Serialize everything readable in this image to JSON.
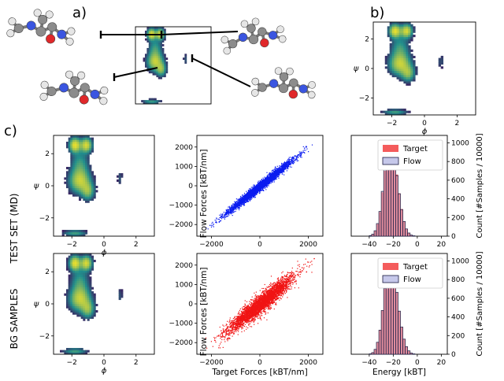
{
  "figure": {
    "panel_labels": {
      "a": "a)",
      "b": "b)",
      "c": "c)"
    },
    "row_labels": {
      "top": "TEST SET (MD)",
      "bottom": "BG SAMPLES"
    }
  },
  "colors": {
    "scatter_md": "#0a1cf0",
    "scatter_bg": "#f01414",
    "hist_target": "#f45c5c",
    "hist_flow_fill": "#c6c8ea",
    "hist_flow_edge": "#1a1a40",
    "density_low": "#440154",
    "density_mid": "#21908d",
    "density_high": "#fde725",
    "atom_carbon": "#8c8c8c",
    "atom_hydrogen": "#e6e6e6",
    "atom_nitrogen": "#3a55e0",
    "atom_oxygen": "#e0282a"
  },
  "chart_data": [
    {
      "id": "panel-a-ramachandran",
      "type": "heatmap",
      "title": "",
      "xlabel": "",
      "ylabel": "",
      "xlim": [
        -3.14,
        3.14
      ],
      "ylim": [
        -3.14,
        3.14
      ],
      "clusters": [
        {
          "phi": -1.5,
          "psi": 2.6,
          "weight": 1.0
        },
        {
          "phi": -1.3,
          "psi": 0.2,
          "weight": 0.8
        },
        {
          "phi": 1.0,
          "psi": 0.5,
          "weight": 0.15
        },
        {
          "phi": -1.6,
          "psi": -2.9,
          "weight": 0.3
        }
      ],
      "annotation": "four alanine-dipeptide conformations linked to density regions"
    },
    {
      "id": "panel-b-ramachandran",
      "type": "heatmap",
      "xlabel": "ϕ",
      "ylabel": "ψ",
      "xlim": [
        -3.14,
        3.14
      ],
      "ylim": [
        -3.14,
        3.14
      ],
      "xticks": [
        -2,
        0,
        2
      ],
      "yticks": [
        -2,
        0,
        2
      ],
      "clusters": [
        {
          "phi": -1.5,
          "psi": 2.6,
          "weight": 1.0
        },
        {
          "phi": -1.3,
          "psi": 0.2,
          "weight": 0.8
        },
        {
          "phi": 1.0,
          "psi": 0.5,
          "weight": 0.15
        },
        {
          "phi": -1.6,
          "psi": -2.9,
          "weight": 0.3
        }
      ]
    },
    {
      "id": "md-ramachandran",
      "type": "heatmap",
      "xlabel": "ϕ",
      "ylabel": "ψ",
      "xlim": [
        -3.14,
        3.14
      ],
      "ylim": [
        -3.14,
        3.14
      ],
      "xticks": [
        -2,
        0,
        2
      ],
      "yticks": [
        -2,
        0,
        2
      ],
      "clusters": [
        {
          "phi": -1.5,
          "psi": 2.6,
          "weight": 1.0
        },
        {
          "phi": -1.3,
          "psi": 0.2,
          "weight": 0.8
        },
        {
          "phi": 1.0,
          "psi": 0.5,
          "weight": 0.15
        },
        {
          "phi": -1.6,
          "psi": -2.9,
          "weight": 0.3
        }
      ]
    },
    {
      "id": "md-forces",
      "type": "scatter",
      "xlabel": "",
      "ylabel": "Flow Forces [k_B T/nm]",
      "xlim": [
        -2600,
        2600
      ],
      "ylim": [
        -2600,
        2600
      ],
      "xticks": [
        -2000,
        0,
        2000
      ],
      "yticks": [
        -2000,
        -1000,
        0,
        1000,
        2000
      ],
      "series": [
        {
          "name": "MD",
          "slope": 1.0,
          "spread": 120,
          "x_range": [
            -2300,
            2300
          ]
        }
      ]
    },
    {
      "id": "md-energy",
      "type": "bar",
      "xlabel": "",
      "ylabel": "Count   [#Samples / 10000]",
      "xlim": [
        -55,
        25
      ],
      "ylim": [
        0,
        1080
      ],
      "xticks": [
        -40,
        -20,
        0,
        20
      ],
      "yticks": [
        0,
        200,
        400,
        600,
        800,
        1000
      ],
      "bins": [
        -39,
        -37,
        -35,
        -33,
        -31,
        -29,
        -27,
        -25,
        -23,
        -21,
        -19,
        -17,
        -15,
        -13,
        -11,
        -9,
        -7,
        -5,
        -3
      ],
      "series": [
        {
          "name": "Target",
          "values": [
            5,
            20,
            55,
            130,
            260,
            470,
            700,
            900,
            1000,
            980,
            860,
            660,
            460,
            290,
            160,
            80,
            35,
            12,
            4
          ]
        },
        {
          "name": "Flow",
          "values": [
            6,
            22,
            58,
            135,
            265,
            480,
            710,
            910,
            1010,
            975,
            850,
            650,
            455,
            285,
            158,
            78,
            34,
            12,
            4
          ]
        }
      ],
      "legend": "top-right"
    },
    {
      "id": "bg-ramachandran",
      "type": "heatmap",
      "xlabel": "ϕ",
      "ylabel": "ψ",
      "xlim": [
        -3.14,
        3.14
      ],
      "ylim": [
        -3.14,
        3.14
      ],
      "xticks": [
        -2,
        0,
        2
      ],
      "yticks": [
        -2,
        0,
        2
      ],
      "clusters": [
        {
          "phi": -1.5,
          "psi": 2.6,
          "weight": 0.9
        },
        {
          "phi": -1.35,
          "psi": 0.1,
          "weight": 0.85
        },
        {
          "phi": 1.0,
          "psi": 0.4,
          "weight": 0.12
        },
        {
          "phi": -1.6,
          "psi": -2.9,
          "weight": 0.3
        }
      ]
    },
    {
      "id": "bg-forces",
      "type": "scatter",
      "xlabel": "Target Forces [k_B T/nm]",
      "ylabel": "Flow Forces [k_B T/nm]",
      "xlim": [
        -2600,
        2600
      ],
      "ylim": [
        -2600,
        2600
      ],
      "xticks": [
        -2000,
        0,
        2000
      ],
      "yticks": [
        -2000,
        -1000,
        0,
        1000,
        2000
      ],
      "series": [
        {
          "name": "BG",
          "slope": 1.0,
          "spread": 260,
          "x_range": [
            -2300,
            2300
          ]
        }
      ]
    },
    {
      "id": "bg-energy",
      "type": "bar",
      "xlabel": "Energy   [k_B T]",
      "ylabel": "Count   [#Samples / 10000]",
      "xlim": [
        -55,
        25
      ],
      "ylim": [
        0,
        1080
      ],
      "xticks": [
        -40,
        -20,
        0,
        20
      ],
      "yticks": [
        0,
        200,
        400,
        600,
        800,
        1000
      ],
      "bins": [
        -39,
        -37,
        -35,
        -33,
        -31,
        -29,
        -27,
        -25,
        -23,
        -21,
        -19,
        -17,
        -15,
        -13,
        -11,
        -9,
        -7,
        -5,
        -3
      ],
      "series": [
        {
          "name": "Target",
          "values": [
            5,
            20,
            55,
            130,
            260,
            470,
            700,
            900,
            1000,
            980,
            860,
            660,
            460,
            290,
            160,
            80,
            35,
            12,
            4
          ]
        },
        {
          "name": "Flow",
          "values": [
            4,
            18,
            52,
            128,
            258,
            468,
            705,
            905,
            1005,
            985,
            862,
            664,
            462,
            292,
            162,
            82,
            36,
            13,
            4
          ]
        }
      ],
      "legend": "top-right"
    }
  ]
}
